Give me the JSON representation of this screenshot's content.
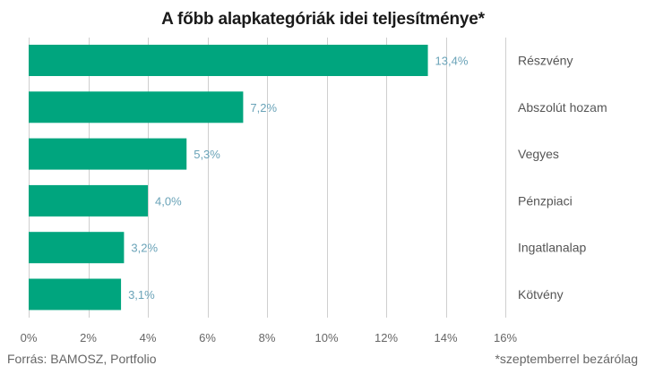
{
  "chart_data": {
    "type": "bar",
    "orientation": "horizontal",
    "title": "A főbb alapkategóriák idei teljesítménye*",
    "categories": [
      "Részvény",
      "Abszolút hozam",
      "Vegyes",
      "Pénzpiaci",
      "Ingatlanalap",
      "Kötvény"
    ],
    "values": [
      13.4,
      7.2,
      5.3,
      4.0,
      3.2,
      3.1
    ],
    "value_labels": [
      "13,4%",
      "7,2%",
      "5,3%",
      "4,0%",
      "3,2%",
      "3,1%"
    ],
    "x_ticks": [
      0,
      2,
      4,
      6,
      8,
      10,
      12,
      14,
      16
    ],
    "x_tick_labels": [
      "0%",
      "2%",
      "4%",
      "6%",
      "8%",
      "10%",
      "12%",
      "14%",
      "16%"
    ],
    "xlim": [
      0,
      16
    ],
    "xlabel": "",
    "ylabel": "",
    "grid": true,
    "legend": "none",
    "category_label_position": "right",
    "bar_color": "#00a57e",
    "value_label_color": "#6aa3b8",
    "grid_color": "#cfcfcf"
  },
  "source": "Forrás: BAMOSZ, Portfolio",
  "footnote": "*szeptemberrel bezárólag"
}
